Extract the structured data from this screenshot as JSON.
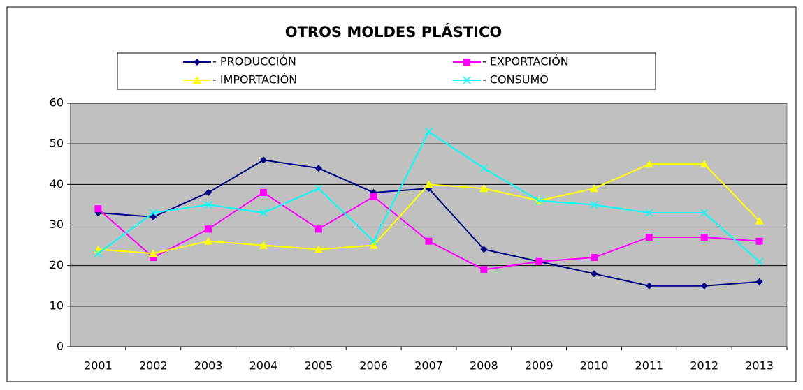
{
  "chart_data": {
    "type": "line",
    "title": "OTROS MOLDES PLÁSTICO",
    "categories": [
      "2001",
      "2002",
      "2003",
      "2004",
      "2005",
      "2006",
      "2007",
      "2008",
      "2009",
      "2010",
      "2011",
      "2012",
      "2013"
    ],
    "series": [
      {
        "name": "- PRODUCCIÓN",
        "color": "#000080",
        "marker": "diamond",
        "values": [
          33,
          32,
          38,
          46,
          44,
          38,
          39,
          24,
          21,
          18,
          15,
          15,
          16
        ]
      },
      {
        "name": "- EXPORTACIÓN",
        "color": "#ff00ff",
        "marker": "square",
        "values": [
          34,
          22,
          29,
          38,
          29,
          37,
          26,
          19,
          21,
          22,
          27,
          27,
          26
        ]
      },
      {
        "name": "- IMPORTACIÓN",
        "color": "#ffff00",
        "marker": "triangle",
        "values": [
          24,
          23,
          26,
          25,
          24,
          25,
          40,
          39,
          36,
          39,
          45,
          45,
          31
        ]
      },
      {
        "name": "- CONSUMO",
        "color": "#00ffff",
        "marker": "x",
        "values": [
          23,
          33,
          35,
          33,
          39,
          26,
          53,
          44,
          36,
          35,
          33,
          33,
          21
        ]
      }
    ],
    "ylim": [
      0,
      60
    ],
    "yticks": [
      0,
      10,
      20,
      30,
      40,
      50,
      60
    ],
    "grid": true,
    "legend": "top"
  }
}
